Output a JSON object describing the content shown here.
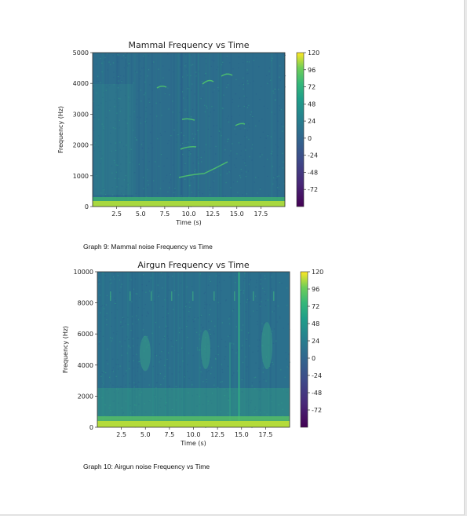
{
  "captions": {
    "graph9": "Graph 9: Mammal noise Frequency vs Time",
    "graph10": "Graph 10: Airgun noise Frequency vs Time"
  },
  "chart_data": [
    {
      "type": "heatmap",
      "title": "Mammal Frequency vs Time",
      "xlabel": "Time (s)",
      "ylabel": "Frequency (Hz)",
      "xlim": [
        0,
        20
      ],
      "ylim": [
        0,
        5000
      ],
      "xticks": [
        "2.5",
        "5.0",
        "7.5",
        "10.0",
        "12.5",
        "15.0",
        "17.5"
      ],
      "xtick_values": [
        2.5,
        5.0,
        7.5,
        10.0,
        12.5,
        15.0,
        17.5
      ],
      "yticks": [
        "0",
        "1000",
        "2000",
        "3000",
        "4000",
        "5000"
      ],
      "ytick_values": [
        0,
        1000,
        2000,
        3000,
        4000,
        5000
      ],
      "colorbar": {
        "range": [
          -96,
          120
        ],
        "ticks": [
          "120",
          "96",
          "72",
          "48",
          "24",
          "0",
          "-24",
          "-48",
          "-72"
        ],
        "tick_values": [
          120,
          96,
          72,
          48,
          24,
          0,
          -24,
          -48,
          -72
        ]
      },
      "colormap": "viridis"
    },
    {
      "type": "heatmap",
      "title": "Airgun Frequency vs Time",
      "xlabel": "Time (s)",
      "ylabel": "Frequency (Hz)",
      "xlim": [
        0,
        20
      ],
      "ylim": [
        0,
        10000
      ],
      "xticks": [
        "2.5",
        "5.0",
        "7.5",
        "10.0",
        "12.5",
        "15.0",
        "17.5"
      ],
      "xtick_values": [
        2.5,
        5.0,
        7.5,
        10.0,
        12.5,
        15.0,
        17.5
      ],
      "yticks": [
        "0",
        "2000",
        "4000",
        "6000",
        "8000",
        "10000"
      ],
      "ytick_values": [
        0,
        2000,
        4000,
        6000,
        8000,
        10000
      ],
      "colorbar": {
        "range": [
          -96,
          120
        ],
        "ticks": [
          "120",
          "96",
          "72",
          "48",
          "24",
          "0",
          "-24",
          "-48",
          "-72"
        ],
        "tick_values": [
          120,
          96,
          72,
          48,
          24,
          0,
          -24,
          -48,
          -72
        ]
      },
      "colormap": "viridis"
    }
  ]
}
